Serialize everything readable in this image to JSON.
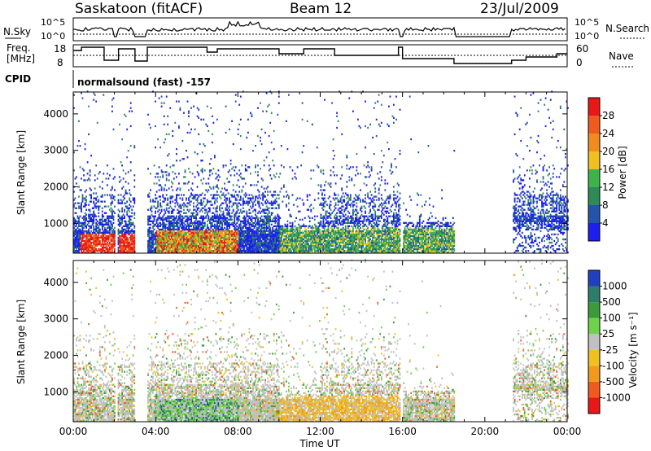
{
  "header": {
    "station": "Saskatoon (fitACF)",
    "beam": "Beam 12",
    "date": "23/Jul/2009"
  },
  "panels": {
    "nsky_label": "N.Sky",
    "nsearch_label": "N.Search",
    "nsky_ticks": [
      "10^5",
      "10^0"
    ],
    "freq_label_line1": "Freq.",
    "freq_label_line2": "[MHz]",
    "freq_ticks": [
      "18",
      "8"
    ],
    "nave_label": "Nave",
    "nave_ticks": [
      "60",
      "0"
    ],
    "cpid_label": "CPID",
    "cpid_text": "normalsound (fast) -157"
  },
  "chart_data": [
    {
      "type": "heatmap",
      "title": "Power",
      "xlabel": "Time UT",
      "ylabel": "Slant Range [km]",
      "x_ticks": [
        "00:00",
        "04:00",
        "08:00",
        "12:00",
        "16:00",
        "20:00",
        "00:00"
      ],
      "xlim_hours": [
        0,
        24
      ],
      "y_ticks": [
        1000,
        2000,
        3000,
        4000
      ],
      "ylim": [
        180,
        4600
      ],
      "colorbar_label": "Power [dB]",
      "colorbar_ticks": [
        4,
        8,
        12,
        16,
        20,
        24,
        28
      ],
      "colorbar_range": [
        0,
        32
      ],
      "colors": [
        "#1e1ef0",
        "#2255aa",
        "#2e8b57",
        "#3cb44b",
        "#f0c020",
        "#f08c1e",
        "#f05a1e",
        "#e81818"
      ],
      "data_gaps_hours": [
        [
          2.0,
          2.15
        ],
        [
          3.0,
          3.6
        ],
        [
          15.85,
          16.0
        ],
        [
          18.5,
          21.3
        ]
      ]
    },
    {
      "type": "heatmap",
      "title": "Velocity",
      "xlabel": "Time UT",
      "ylabel": "Slant Range [km]",
      "x_ticks": [
        "00:00",
        "04:00",
        "08:00",
        "12:00",
        "16:00",
        "20:00",
        "00:00"
      ],
      "xlim_hours": [
        0,
        24
      ],
      "y_ticks": [
        1000,
        2000,
        3000,
        4000
      ],
      "ylim": [
        180,
        4600
      ],
      "colorbar_label": "Velocity [m s⁻¹]",
      "colorbar_ticks": [
        "1000",
        "500",
        "100",
        "25",
        "-25",
        "-100",
        "-500",
        "-1000"
      ],
      "colors": [
        "#2040c0",
        "#2e7d6a",
        "#3c9a3c",
        "#6ed24a",
        "#c0c0c0",
        "#f0c020",
        "#f09a1e",
        "#f05a1e",
        "#e81818"
      ],
      "data_gaps_hours": [
        [
          2.0,
          2.15
        ],
        [
          3.0,
          3.6
        ],
        [
          15.85,
          16.0
        ],
        [
          18.5,
          21.3
        ]
      ]
    }
  ]
}
